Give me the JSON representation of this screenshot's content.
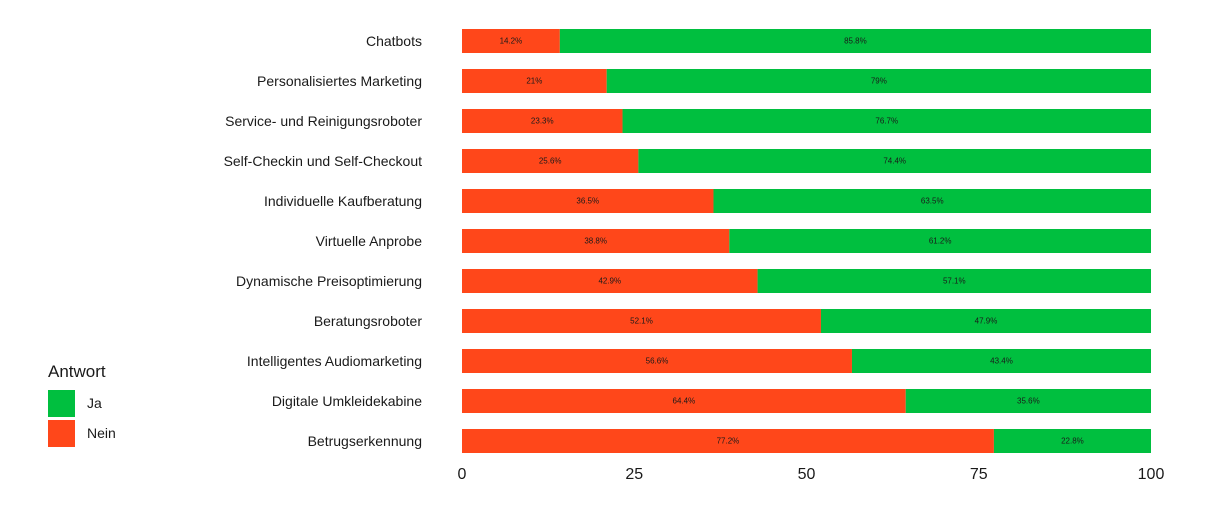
{
  "chart_data": {
    "type": "bar",
    "orientation": "horizontal",
    "stacked": true,
    "categories": [
      "Chatbots",
      "Personalisiertes Marketing",
      "Service- und Reinigungsroboter",
      "Self-Checkin und Self-Checkout",
      "Individuelle Kaufberatung",
      "Virtuelle Anprobe",
      "Dynamische Preisoptimierung",
      "Beratungsroboter",
      "Intelligentes Audiomarketing",
      "Digitale Umkleidekabine",
      "Betrugserkennung"
    ],
    "series": [
      {
        "name": "Nein",
        "color": "#ff471a",
        "values": [
          14.2,
          21,
          23.3,
          25.6,
          36.5,
          38.8,
          42.9,
          52.1,
          56.6,
          64.4,
          77.2
        ],
        "labels": [
          "14.2%",
          "21%",
          "23.3%",
          "25.6%",
          "36.5%",
          "38.8%",
          "42.9%",
          "52.1%",
          "56.6%",
          "64.4%",
          "77.2%"
        ]
      },
      {
        "name": "Ja",
        "color": "#00bf3f",
        "values": [
          85.8,
          79,
          76.7,
          74.4,
          63.5,
          61.2,
          57.1,
          47.9,
          43.4,
          35.6,
          22.8
        ],
        "labels": [
          "85.8%",
          "79%",
          "76.7%",
          "74.4%",
          "63.5%",
          "61.2%",
          "57.1%",
          "47.9%",
          "43.4%",
          "35.6%",
          "22.8%"
        ]
      }
    ],
    "xlim": [
      0,
      100
    ],
    "xticks": [
      "0",
      "25",
      "50",
      "75",
      "100"
    ],
    "grid": false,
    "title": "",
    "xlabel": "",
    "ylabel": "",
    "legend": {
      "title": "Antwort",
      "placement": "left",
      "entries": [
        {
          "label": "Ja",
          "color": "#00bf3f"
        },
        {
          "label": "Nein",
          "color": "#ff471a"
        }
      ]
    }
  }
}
